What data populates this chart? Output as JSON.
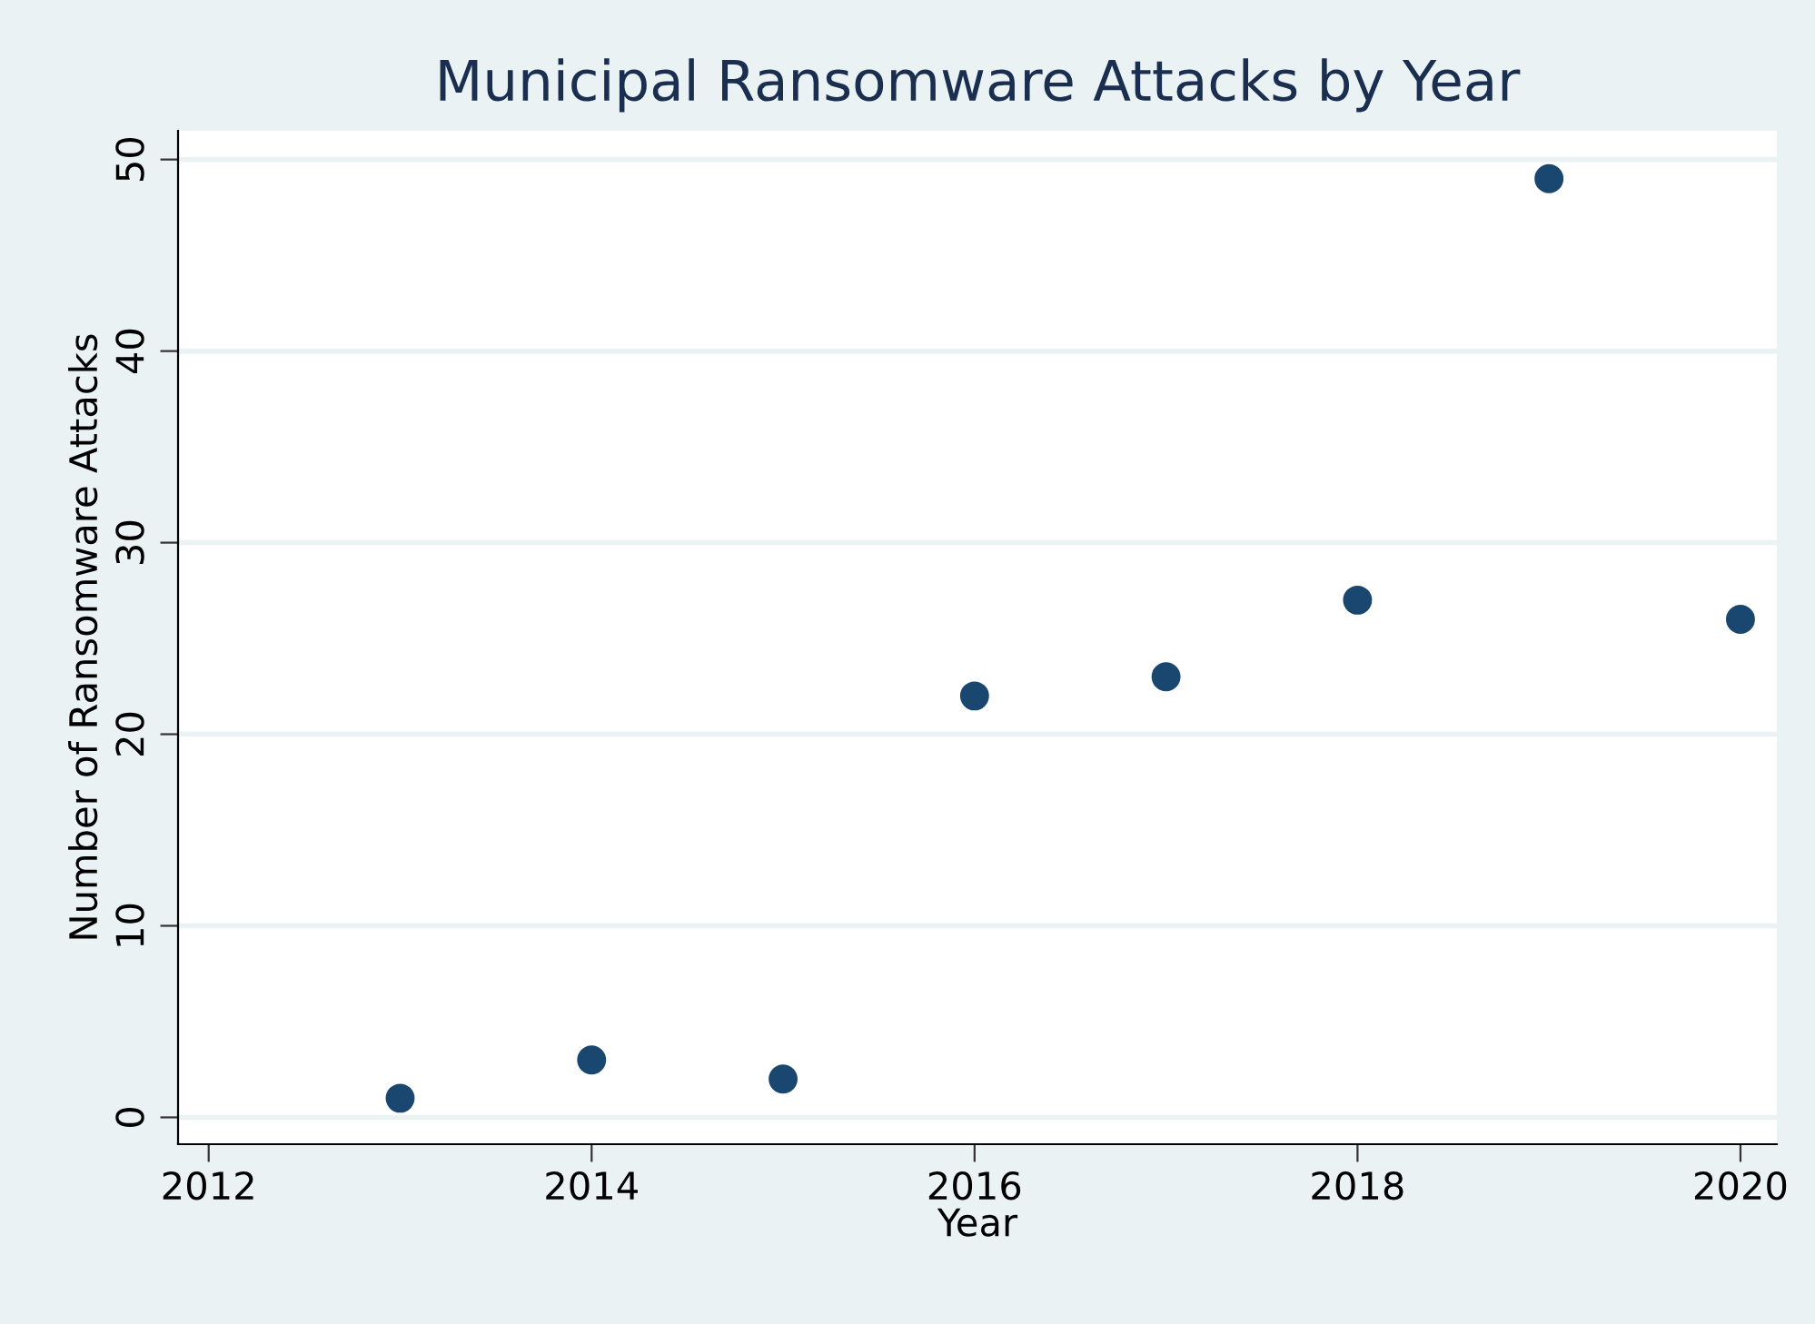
{
  "chart_data": {
    "type": "scatter",
    "title": "Municipal Ransomware Attacks by Year",
    "xlabel": "Year",
    "ylabel": "Number of Ransomware Attacks",
    "x": [
      2013,
      2014,
      2015,
      2016,
      2017,
      2018,
      2019,
      2020
    ],
    "series": [
      {
        "color": "#1a476f",
        "values": [
          1,
          3,
          2,
          22,
          23,
          27,
          49,
          26
        ]
      }
    ],
    "xlim": [
      2011.84,
      2020.19
    ],
    "ylim": [
      -1.4,
      51.5
    ],
    "xticks": [
      2012,
      2014,
      2016,
      2018,
      2020
    ],
    "yticks": [
      0,
      10,
      20,
      30,
      40,
      50
    ],
    "grid": "y",
    "marker": "circle"
  }
}
